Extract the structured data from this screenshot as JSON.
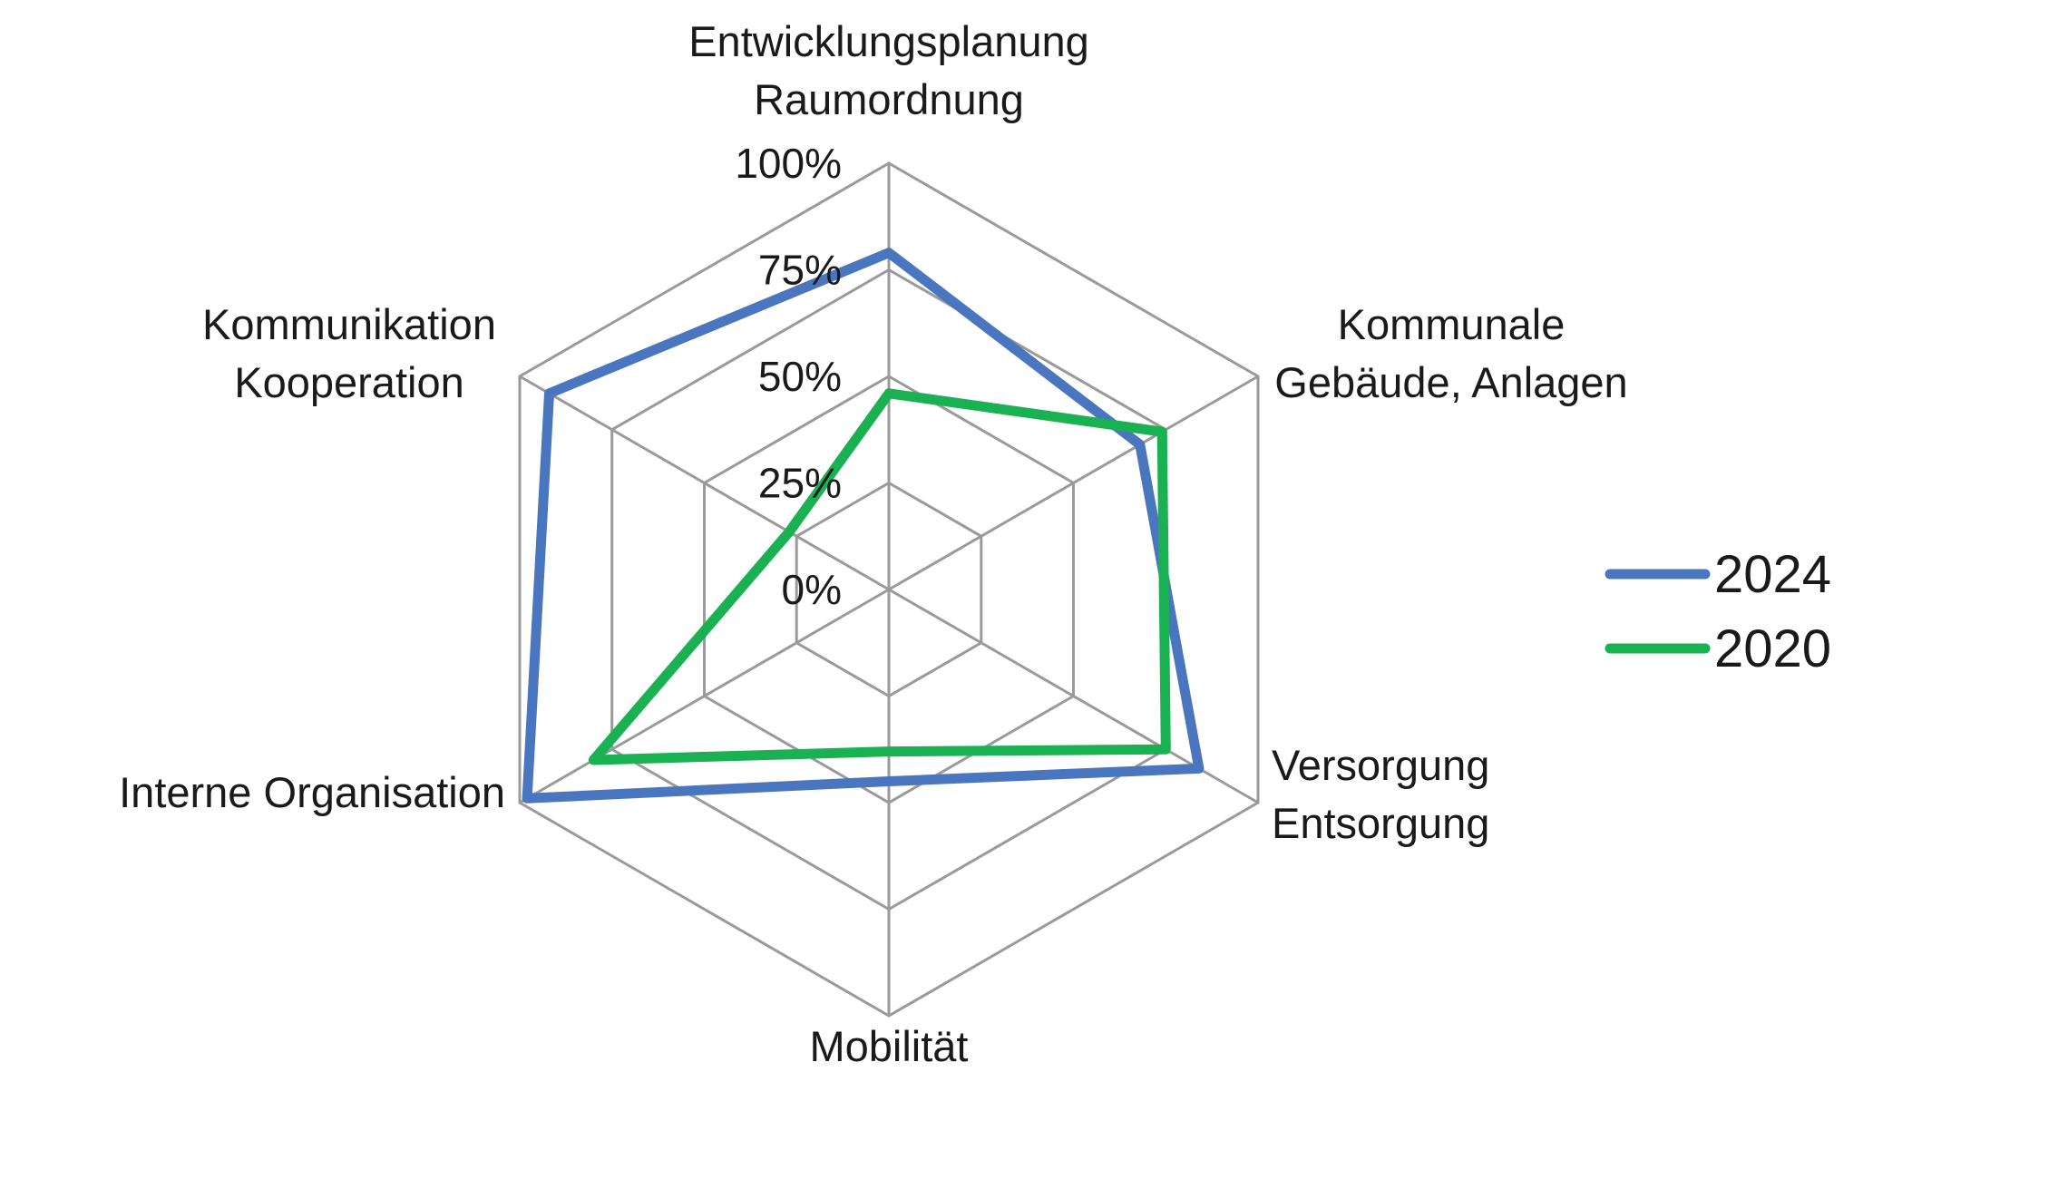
{
  "chart_data": {
    "type": "radar",
    "categories": [
      [
        "Entwicklungsplanung",
        "Raumordnung"
      ],
      [
        "Kommunale",
        "Gebäude, Anlagen"
      ],
      [
        "Versorgung",
        "Entsorgung"
      ],
      [
        "Mobilität"
      ],
      [
        "Interne Organisation"
      ],
      [
        "Kommunikation",
        "Kooperation"
      ]
    ],
    "r_ticks": [
      "0%",
      "25%",
      "50%",
      "75%",
      "100%"
    ],
    "r_range": [
      0,
      100
    ],
    "grid": true,
    "legend_position": "right",
    "series": [
      {
        "name": "2024",
        "color": "#4a76bf",
        "values": [
          79,
          68,
          84,
          45,
          98,
          92
        ]
      },
      {
        "name": "2020",
        "color": "#19b152",
        "values": [
          46,
          74,
          75,
          38,
          80,
          27
        ]
      }
    ]
  }
}
